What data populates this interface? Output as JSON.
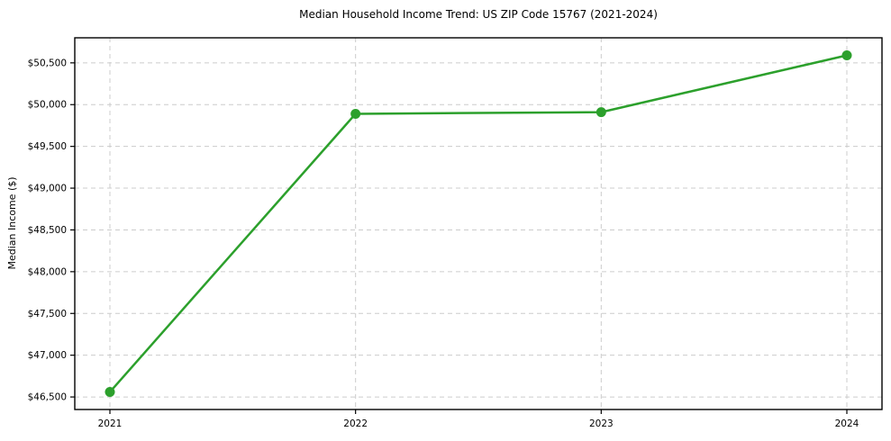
{
  "chart_data": {
    "type": "line",
    "title": "Median Household Income Trend: US ZIP Code 15767 (2021-2024)",
    "xlabel": "",
    "ylabel": "Median Income ($)",
    "categories": [
      "2021",
      "2022",
      "2023",
      "2024"
    ],
    "series": [
      {
        "name": "Median Household Income",
        "values": [
          46560,
          49890,
          49910,
          50590
        ]
      }
    ],
    "ylim": [
      46350,
      50800
    ],
    "ytick_values": [
      46500,
      47000,
      47500,
      48000,
      48500,
      49000,
      49500,
      50000,
      50500
    ],
    "ytick_labels": [
      "$46,500",
      "$47,000",
      "$47,500",
      "$48,000",
      "$48,500",
      "$49,000",
      "$49,500",
      "$50,000",
      "$50,500"
    ],
    "grid": true,
    "legend_position": "none",
    "colors": {
      "line": "#2ca02c",
      "marker": "#2ca02c",
      "grid": "#cccccc",
      "axis": "#000000",
      "background": "#ffffff"
    }
  }
}
